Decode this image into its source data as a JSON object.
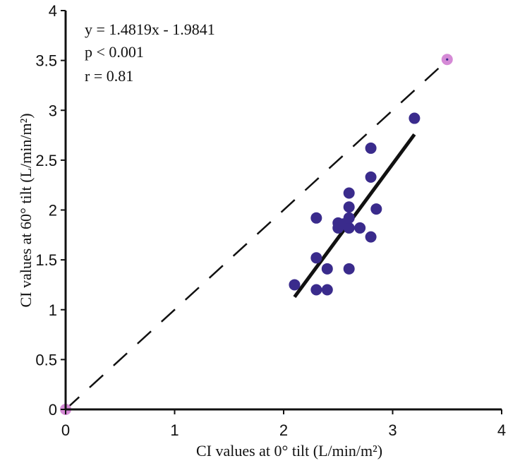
{
  "chart_data": {
    "type": "scatter",
    "xlabel": "CI values at 0° tilt (L/min/m²)",
    "ylabel": "CI values at 60° tilt (L/min/m²)",
    "xlim": [
      0,
      4
    ],
    "ylim": [
      0,
      4
    ],
    "x_ticks": [
      "0",
      "1",
      "2",
      "3",
      "4"
    ],
    "y_ticks": [
      "0",
      "0.5",
      "1",
      "1.5",
      "2",
      "2.5",
      "3",
      "3.5",
      "4"
    ],
    "grid": false,
    "annotations": [
      "y = 1.4819x - 1.9841",
      "p < 0.001",
      "r = 0.81"
    ],
    "series": [
      {
        "color": "#3a2b8c",
        "points": [
          [
            2.1,
            1.25
          ],
          [
            2.3,
            1.2
          ],
          [
            2.4,
            1.2
          ],
          [
            2.3,
            1.52
          ],
          [
            2.4,
            1.41
          ],
          [
            2.3,
            1.92
          ],
          [
            2.5,
            1.82
          ],
          [
            2.5,
            1.87
          ],
          [
            2.55,
            1.86
          ],
          [
            2.6,
            1.82
          ],
          [
            2.6,
            1.92
          ],
          [
            2.6,
            2.03
          ],
          [
            2.6,
            2.17
          ],
          [
            2.6,
            1.41
          ],
          [
            2.7,
            1.82
          ],
          [
            2.8,
            1.73
          ],
          [
            2.8,
            2.33
          ],
          [
            2.8,
            2.62
          ],
          [
            2.85,
            2.01
          ],
          [
            3.2,
            2.92
          ]
        ]
      },
      {
        "color": "#d58ad6",
        "points": [
          [
            0,
            0
          ],
          [
            3.5,
            3.51
          ]
        ]
      }
    ],
    "regression_line": {
      "color": "#111111",
      "x": [
        2.1,
        3.2
      ]
    },
    "identity_line": {
      "color": "#111111",
      "x": [
        0,
        3.5
      ]
    }
  }
}
